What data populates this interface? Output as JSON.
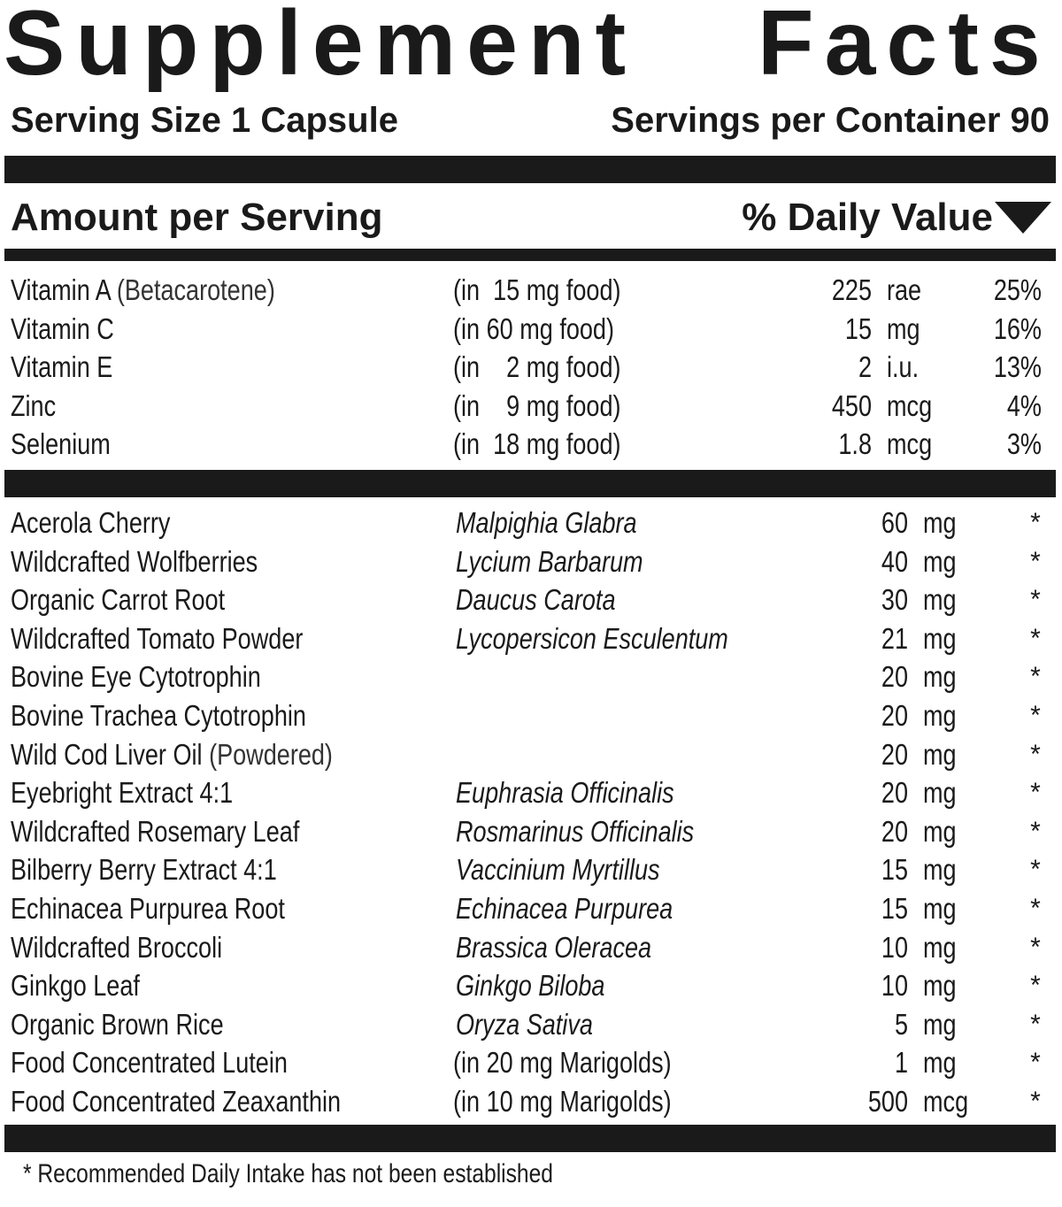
{
  "header": {
    "title_word1": "Supplement",
    "title_word2": "Facts",
    "serving_size": "Serving Size 1 Capsule",
    "servings_per_container": "Servings per Container 90",
    "amount_per_serving": "Amount per Serving",
    "daily_value": "% Daily Value"
  },
  "vitamins": [
    {
      "name": "Vitamin A",
      "note": "(Betacarotene)",
      "food": "(in  15 mg food)",
      "amount": "225",
      "unit": "rae",
      "dv": "25%"
    },
    {
      "name": "Vitamin C",
      "note": "",
      "food": "(in 60 mg food)",
      "amount": "15",
      "unit": "mg",
      "dv": "16%"
    },
    {
      "name": "Vitamin E",
      "note": "",
      "food": "(in    2 mg food)",
      "amount": "2",
      "unit": "i.u.",
      "dv": "13%"
    },
    {
      "name": "Zinc",
      "note": "",
      "food": "(in    9 mg food)",
      "amount": "450",
      "unit": "mcg",
      "dv": "4%"
    },
    {
      "name": "Selenium",
      "note": "",
      "food": "(in  18 mg food)",
      "amount": "1.8",
      "unit": "mcg",
      "dv": "3%"
    }
  ],
  "ingredients": [
    {
      "name": "Acerola Cherry",
      "note": "",
      "latin": "Malpighia Glabra",
      "source": "",
      "amount": "60",
      "unit": "mg",
      "dv": "*"
    },
    {
      "name": "Wildcrafted Wolfberries",
      "note": "",
      "latin": "Lycium Barbarum",
      "source": "",
      "amount": "40",
      "unit": "mg",
      "dv": "*"
    },
    {
      "name": "Organic Carrot Root",
      "note": "",
      "latin": "Daucus Carota",
      "source": "",
      "amount": "30",
      "unit": "mg",
      "dv": "*"
    },
    {
      "name": "Wildcrafted Tomato Powder",
      "note": "",
      "latin": "Lycopersicon Esculentum",
      "source": "",
      "amount": "21",
      "unit": "mg",
      "dv": "*"
    },
    {
      "name": "Bovine Eye Cytotrophin",
      "note": "",
      "latin": "",
      "source": "",
      "amount": "20",
      "unit": "mg",
      "dv": "*"
    },
    {
      "name": "Bovine Trachea Cytotrophin",
      "note": "",
      "latin": "",
      "source": "",
      "amount": "20",
      "unit": "mg",
      "dv": "*"
    },
    {
      "name": "Wild Cod Liver Oil",
      "note": "(Powdered)",
      "latin": "",
      "source": "",
      "amount": "20",
      "unit": "mg",
      "dv": "*"
    },
    {
      "name": "Eyebright Extract 4:1",
      "note": "",
      "latin": "Euphrasia Officinalis",
      "source": "",
      "amount": "20",
      "unit": "mg",
      "dv": "*"
    },
    {
      "name": "Wildcrafted Rosemary Leaf",
      "note": "",
      "latin": "Rosmarinus Officinalis",
      "source": "",
      "amount": "20",
      "unit": "mg",
      "dv": "*"
    },
    {
      "name": "Bilberry Berry Extract 4:1",
      "note": "",
      "latin": "Vaccinium Myrtillus",
      "source": "",
      "amount": "15",
      "unit": "mg",
      "dv": "*"
    },
    {
      "name": "Echinacea Purpurea Root",
      "note": "",
      "latin": "Echinacea Purpurea",
      "source": "",
      "amount": "15",
      "unit": "mg",
      "dv": "*"
    },
    {
      "name": "Wildcrafted Broccoli",
      "note": "",
      "latin": "Brassica Oleracea",
      "source": "",
      "amount": "10",
      "unit": "mg",
      "dv": "*"
    },
    {
      "name": "Ginkgo Leaf",
      "note": "",
      "latin": "Ginkgo Biloba",
      "source": "",
      "amount": "10",
      "unit": "mg",
      "dv": "*"
    },
    {
      "name": "Organic Brown Rice",
      "note": "",
      "latin": "Oryza Sativa",
      "source": "",
      "amount": "5",
      "unit": "mg",
      "dv": "*"
    },
    {
      "name": "Food Concentrated Lutein",
      "note": "",
      "latin": "",
      "source": "(in 20 mg Marigolds)",
      "amount": "1",
      "unit": "mg",
      "dv": "*"
    },
    {
      "name": "Food Concentrated Zeaxanthin",
      "note": "",
      "latin": "",
      "source": "(in 10 mg Marigolds)",
      "amount": "500",
      "unit": "mcg",
      "dv": "*"
    }
  ],
  "footnote": "* Recommended Daily Intake has not been established"
}
